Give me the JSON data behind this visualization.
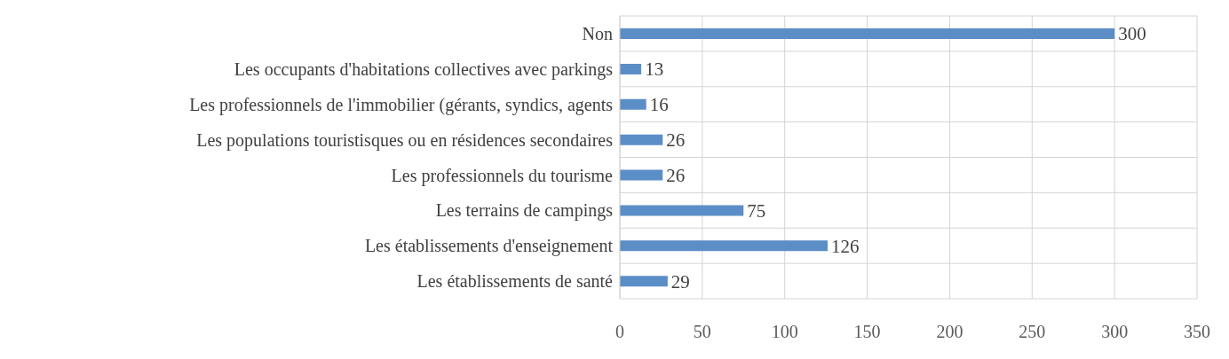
{
  "chart_data": {
    "type": "bar",
    "orientation": "horizontal",
    "categories": [
      "Non",
      "Les occupants d'habitations collectives avec parkings",
      "Les professionnels de l'immobilier (gérants, syndics, agents",
      "Les populations touristisques ou en résidences secondaires",
      "Les professionnels du tourisme",
      "Les terrains de campings",
      "Les établissements d'enseignement",
      "Les établissements de santé"
    ],
    "values": [
      300,
      13,
      16,
      26,
      26,
      75,
      126,
      29
    ],
    "color": "#5b8ec6",
    "xlim": [
      0,
      350
    ],
    "xticks": [
      0,
      50,
      100,
      150,
      200,
      250,
      300,
      350
    ],
    "grid": true,
    "data_labels": true
  }
}
